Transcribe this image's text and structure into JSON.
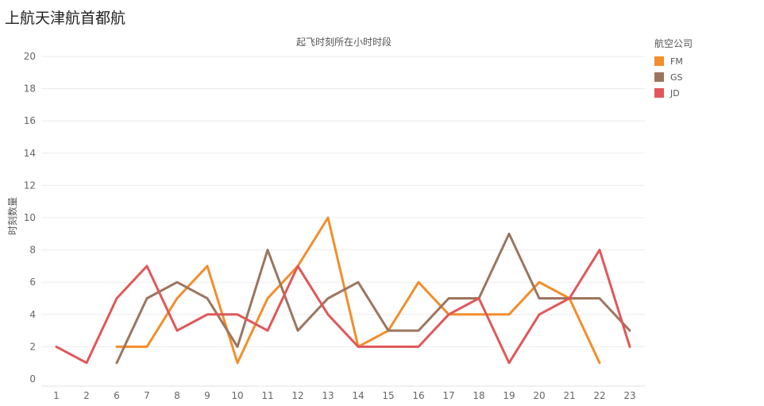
{
  "page": {
    "title": "上航天津航首都航"
  },
  "chart_data": {
    "type": "line",
    "title": "起飞时刻所在小时时段",
    "xlabel": "",
    "ylabel": "时刻数量",
    "categories": [
      "1",
      "2",
      "6",
      "7",
      "8",
      "9",
      "10",
      "11",
      "12",
      "13",
      "14",
      "15",
      "16",
      "17",
      "18",
      "19",
      "20",
      "21",
      "22",
      "23"
    ],
    "yticks": [
      "0",
      "2",
      "4",
      "6",
      "8",
      "10",
      "12",
      "14",
      "16",
      "18",
      "20"
    ],
    "ylim": [
      0,
      20
    ],
    "grid": true,
    "legend": {
      "title": "航空公司",
      "placement": "right"
    },
    "series": [
      {
        "name": "FM",
        "color": "#f28e2b",
        "values": [
          null,
          null,
          2,
          2,
          5,
          7,
          1,
          5,
          7,
          10,
          2,
          3,
          6,
          4,
          4,
          4,
          6,
          5,
          1,
          null
        ]
      },
      {
        "name": "GS",
        "color": "#9c755f",
        "values": [
          null,
          null,
          1,
          5,
          6,
          5,
          2,
          8,
          3,
          5,
          6,
          3,
          3,
          5,
          5,
          9,
          5,
          5,
          5,
          3
        ]
      },
      {
        "name": "JD",
        "color": "#e15759",
        "values": [
          2,
          1,
          5,
          7,
          3,
          4,
          4,
          3,
          7,
          4,
          2,
          2,
          2,
          4,
          5,
          1,
          4,
          5,
          8,
          2
        ]
      }
    ]
  }
}
